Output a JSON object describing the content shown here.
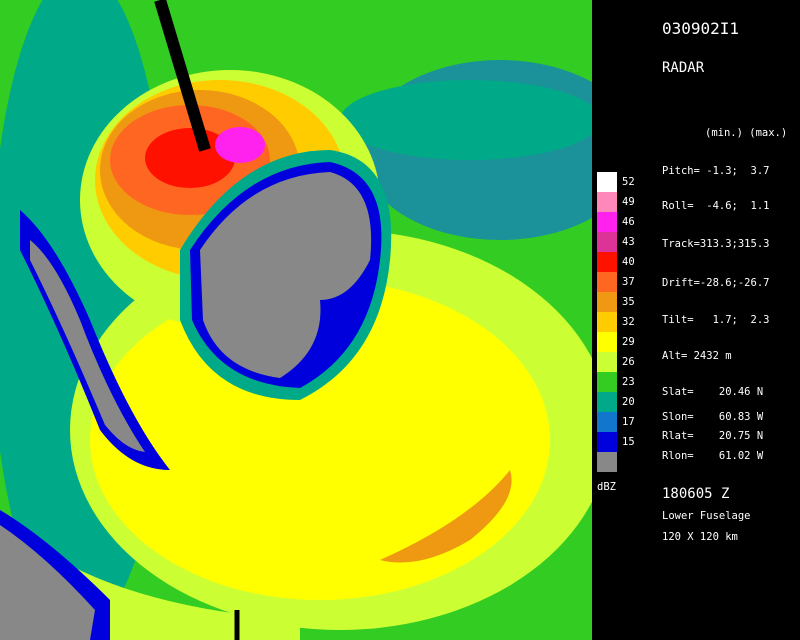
{
  "header": {
    "flight_id": "030902I1",
    "instrument": "RADAR"
  },
  "colorbar": {
    "levels": [
      {
        "label": "52",
        "color": "#ffffff"
      },
      {
        "label": "49",
        "color": "#ff88b8"
      },
      {
        "label": "46",
        "color": "#ff22ee"
      },
      {
        "label": "43",
        "color": "#dd3399"
      },
      {
        "label": "40",
        "color": "#ff1100"
      },
      {
        "label": "37",
        "color": "#ff6622"
      },
      {
        "label": "35",
        "color": "#ee9911"
      },
      {
        "label": "32",
        "color": "#ffcc00"
      },
      {
        "label": "29",
        "color": "#ffff00"
      },
      {
        "label": "26",
        "color": "#ccff33"
      },
      {
        "label": "23",
        "color": "#33cc22"
      },
      {
        "label": "20",
        "color": "#00aa88"
      },
      {
        "label": "17",
        "color": "#1177cc"
      },
      {
        "label": "15",
        "color": "#0000dd"
      }
    ],
    "below_color": "#888888",
    "unit": "dBZ"
  },
  "parameters": {
    "heading": "(min.) (max.)",
    "lines": [
      "Pitch= -1.3;  3.7",
      "Roll=  -4.6;  1.1",
      "Track=313.3;315.3",
      "Drift=-28.6;-26.7",
      "Tilt=   1.7;  2.3",
      "Alt= 2432 m"
    ],
    "positions": [
      "Slat=    20.46 N",
      "Slon=    60.83 W",
      "Rlat=    20.75 N",
      "Rlon=    61.02 W"
    ]
  },
  "footer": {
    "time": "180605 Z",
    "antenna": "Lower Fuselage",
    "range": "120 X 120 km"
  }
}
